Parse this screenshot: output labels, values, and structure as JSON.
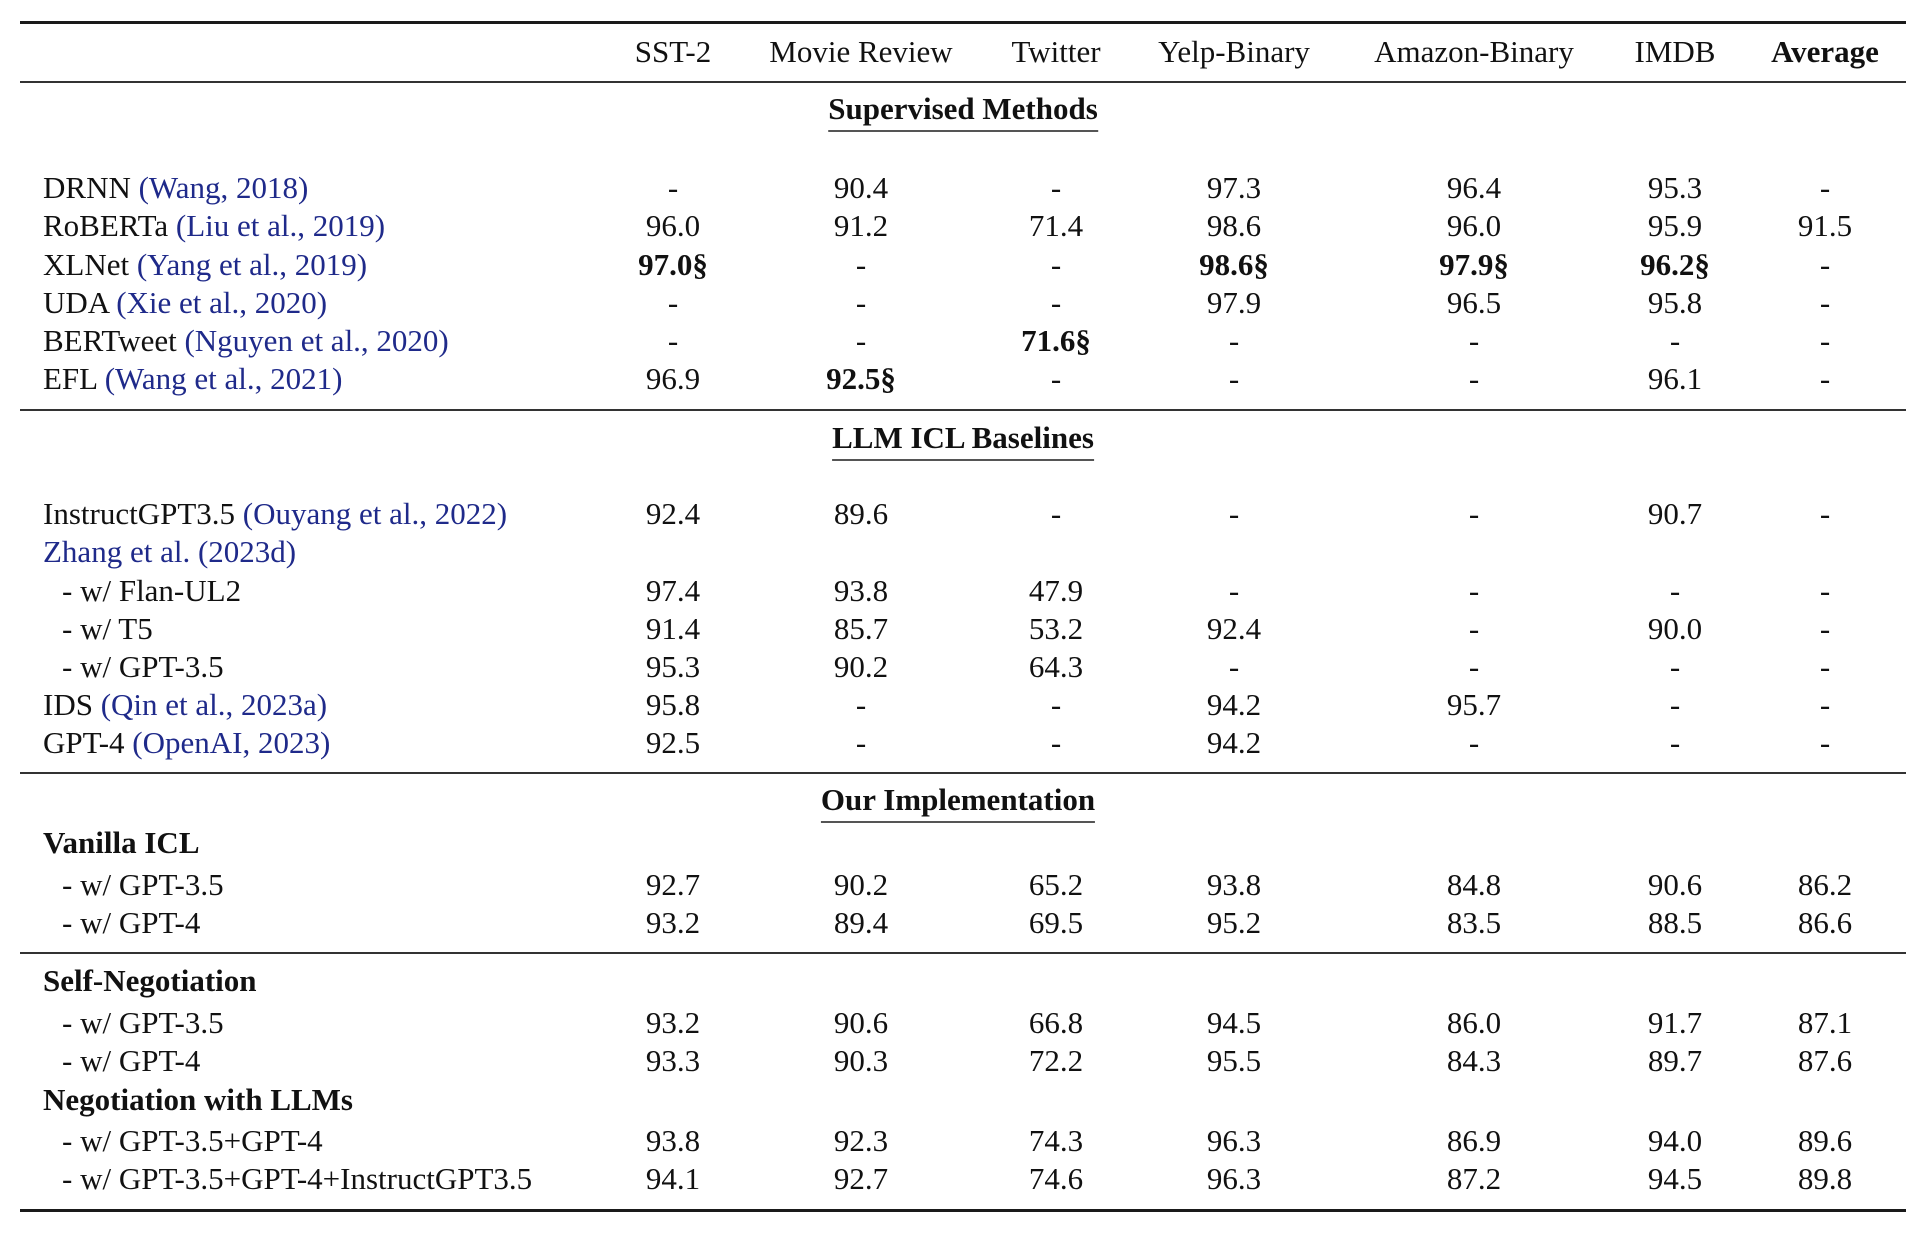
{
  "table": {
    "columns": [
      "SST-2",
      "Movie Review",
      "Twitter",
      "Yelp-Binary",
      "Amazon-Binary",
      "IMDB",
      "Average"
    ],
    "sections": {
      "supervised": {
        "title": "Supervised Methods",
        "rows": [
          {
            "model": "DRNN",
            "cite": "(Wang, 2018)",
            "values": [
              "-",
              "90.4",
              "-",
              "97.3",
              "96.4",
              "95.3",
              "-"
            ]
          },
          {
            "model": "RoBERTa",
            "cite": "(Liu et al., 2019)",
            "values": [
              "96.0",
              "91.2",
              "71.4",
              "98.6",
              "96.0",
              "95.9",
              "91.5"
            ]
          },
          {
            "model": "XLNet",
            "cite": "(Yang et al., 2019)",
            "values": [
              "97.0§",
              "-",
              "-",
              "98.6§",
              "97.9§",
              "96.2§",
              "-"
            ],
            "bold": [
              0,
              3,
              4,
              5
            ]
          },
          {
            "model": "UDA",
            "cite": "(Xie et al., 2020)",
            "values": [
              "-",
              "-",
              "-",
              "97.9",
              "96.5",
              "95.8",
              "-"
            ]
          },
          {
            "model": "BERTweet",
            "cite": "(Nguyen et al., 2020)",
            "values": [
              "-",
              "-",
              "71.6§",
              "-",
              "-",
              "-",
              "-"
            ],
            "bold": [
              2
            ]
          },
          {
            "model": "EFL",
            "cite": "(Wang et al., 2021)",
            "values": [
              "96.9",
              "92.5§",
              "-",
              "-",
              "-",
              "96.1",
              "-"
            ],
            "bold": [
              1
            ]
          }
        ]
      },
      "llm_icl": {
        "title": "LLM ICL Baselines",
        "rows": [
          {
            "model": "InstructGPT3.5",
            "cite": "(Ouyang et al., 2022)",
            "values": [
              "92.4",
              "89.6",
              "-",
              "-",
              "-",
              "90.7",
              "-"
            ]
          },
          {
            "model": "",
            "cite": "Zhang et al. (2023d)",
            "values": [
              "",
              "",
              "",
              "",
              "",
              "",
              ""
            ]
          },
          {
            "model": "- w/ Flan-UL2",
            "cite": "",
            "sub": true,
            "values": [
              "97.4",
              "93.8",
              "47.9",
              "-",
              "-",
              "-",
              "-"
            ]
          },
          {
            "model": "- w/ T5",
            "cite": "",
            "sub": true,
            "values": [
              "91.4",
              "85.7",
              "53.2",
              "92.4",
              "-",
              "90.0",
              "-"
            ]
          },
          {
            "model": "- w/ GPT-3.5",
            "cite": "",
            "sub": true,
            "values": [
              "95.3",
              "90.2",
              "64.3",
              "-",
              "-",
              "-",
              "-"
            ]
          },
          {
            "model": "IDS",
            "cite": "(Qin et al., 2023a)",
            "values": [
              "95.8",
              "-",
              "-",
              "94.2",
              "95.7",
              "-",
              "-"
            ]
          },
          {
            "model": "GPT-4",
            "cite": "(OpenAI, 2023)",
            "values": [
              "92.5",
              "-",
              "-",
              "94.2",
              "-",
              "-",
              "-"
            ]
          }
        ]
      },
      "ours": {
        "title": "Our Implementation",
        "groups": [
          {
            "title": "Vanilla ICL",
            "rows": [
              {
                "model": "- w/ GPT-3.5",
                "values": [
                  "92.7",
                  "90.2",
                  "65.2",
                  "93.8",
                  "84.8",
                  "90.6",
                  "86.2"
                ]
              },
              {
                "model": "- w/ GPT-4",
                "values": [
                  "93.2",
                  "89.4",
                  "69.5",
                  "95.2",
                  "83.5",
                  "88.5",
                  "86.6"
                ]
              }
            ]
          },
          {
            "title": "Self-Negotiation",
            "rows": [
              {
                "model": "- w/ GPT-3.5",
                "values": [
                  "93.2",
                  "90.6",
                  "66.8",
                  "94.5",
                  "86.0",
                  "91.7",
                  "87.1"
                ]
              },
              {
                "model": "- w/ GPT-4",
                "values": [
                  "93.3",
                  "90.3",
                  "72.2",
                  "95.5",
                  "84.3",
                  "89.7",
                  "87.6"
                ]
              }
            ]
          },
          {
            "title": "Negotiation with LLMs",
            "rows": [
              {
                "model": "- w/ GPT-3.5+GPT-4",
                "values": [
                  "93.8",
                  "92.3",
                  "74.3",
                  "96.3",
                  "86.9",
                  "94.0",
                  "89.6"
                ]
              },
              {
                "model": "- w/ GPT-3.5+GPT-4+InstructGPT3.5",
                "values": [
                  "94.1",
                  "92.7",
                  "74.6",
                  "96.3",
                  "87.2",
                  "94.5",
                  "89.8"
                ]
              }
            ]
          }
        ]
      }
    },
    "colors": {
      "citation": "#1f2a8a",
      "text": "#111111",
      "rule": "#1a1a1a"
    }
  }
}
